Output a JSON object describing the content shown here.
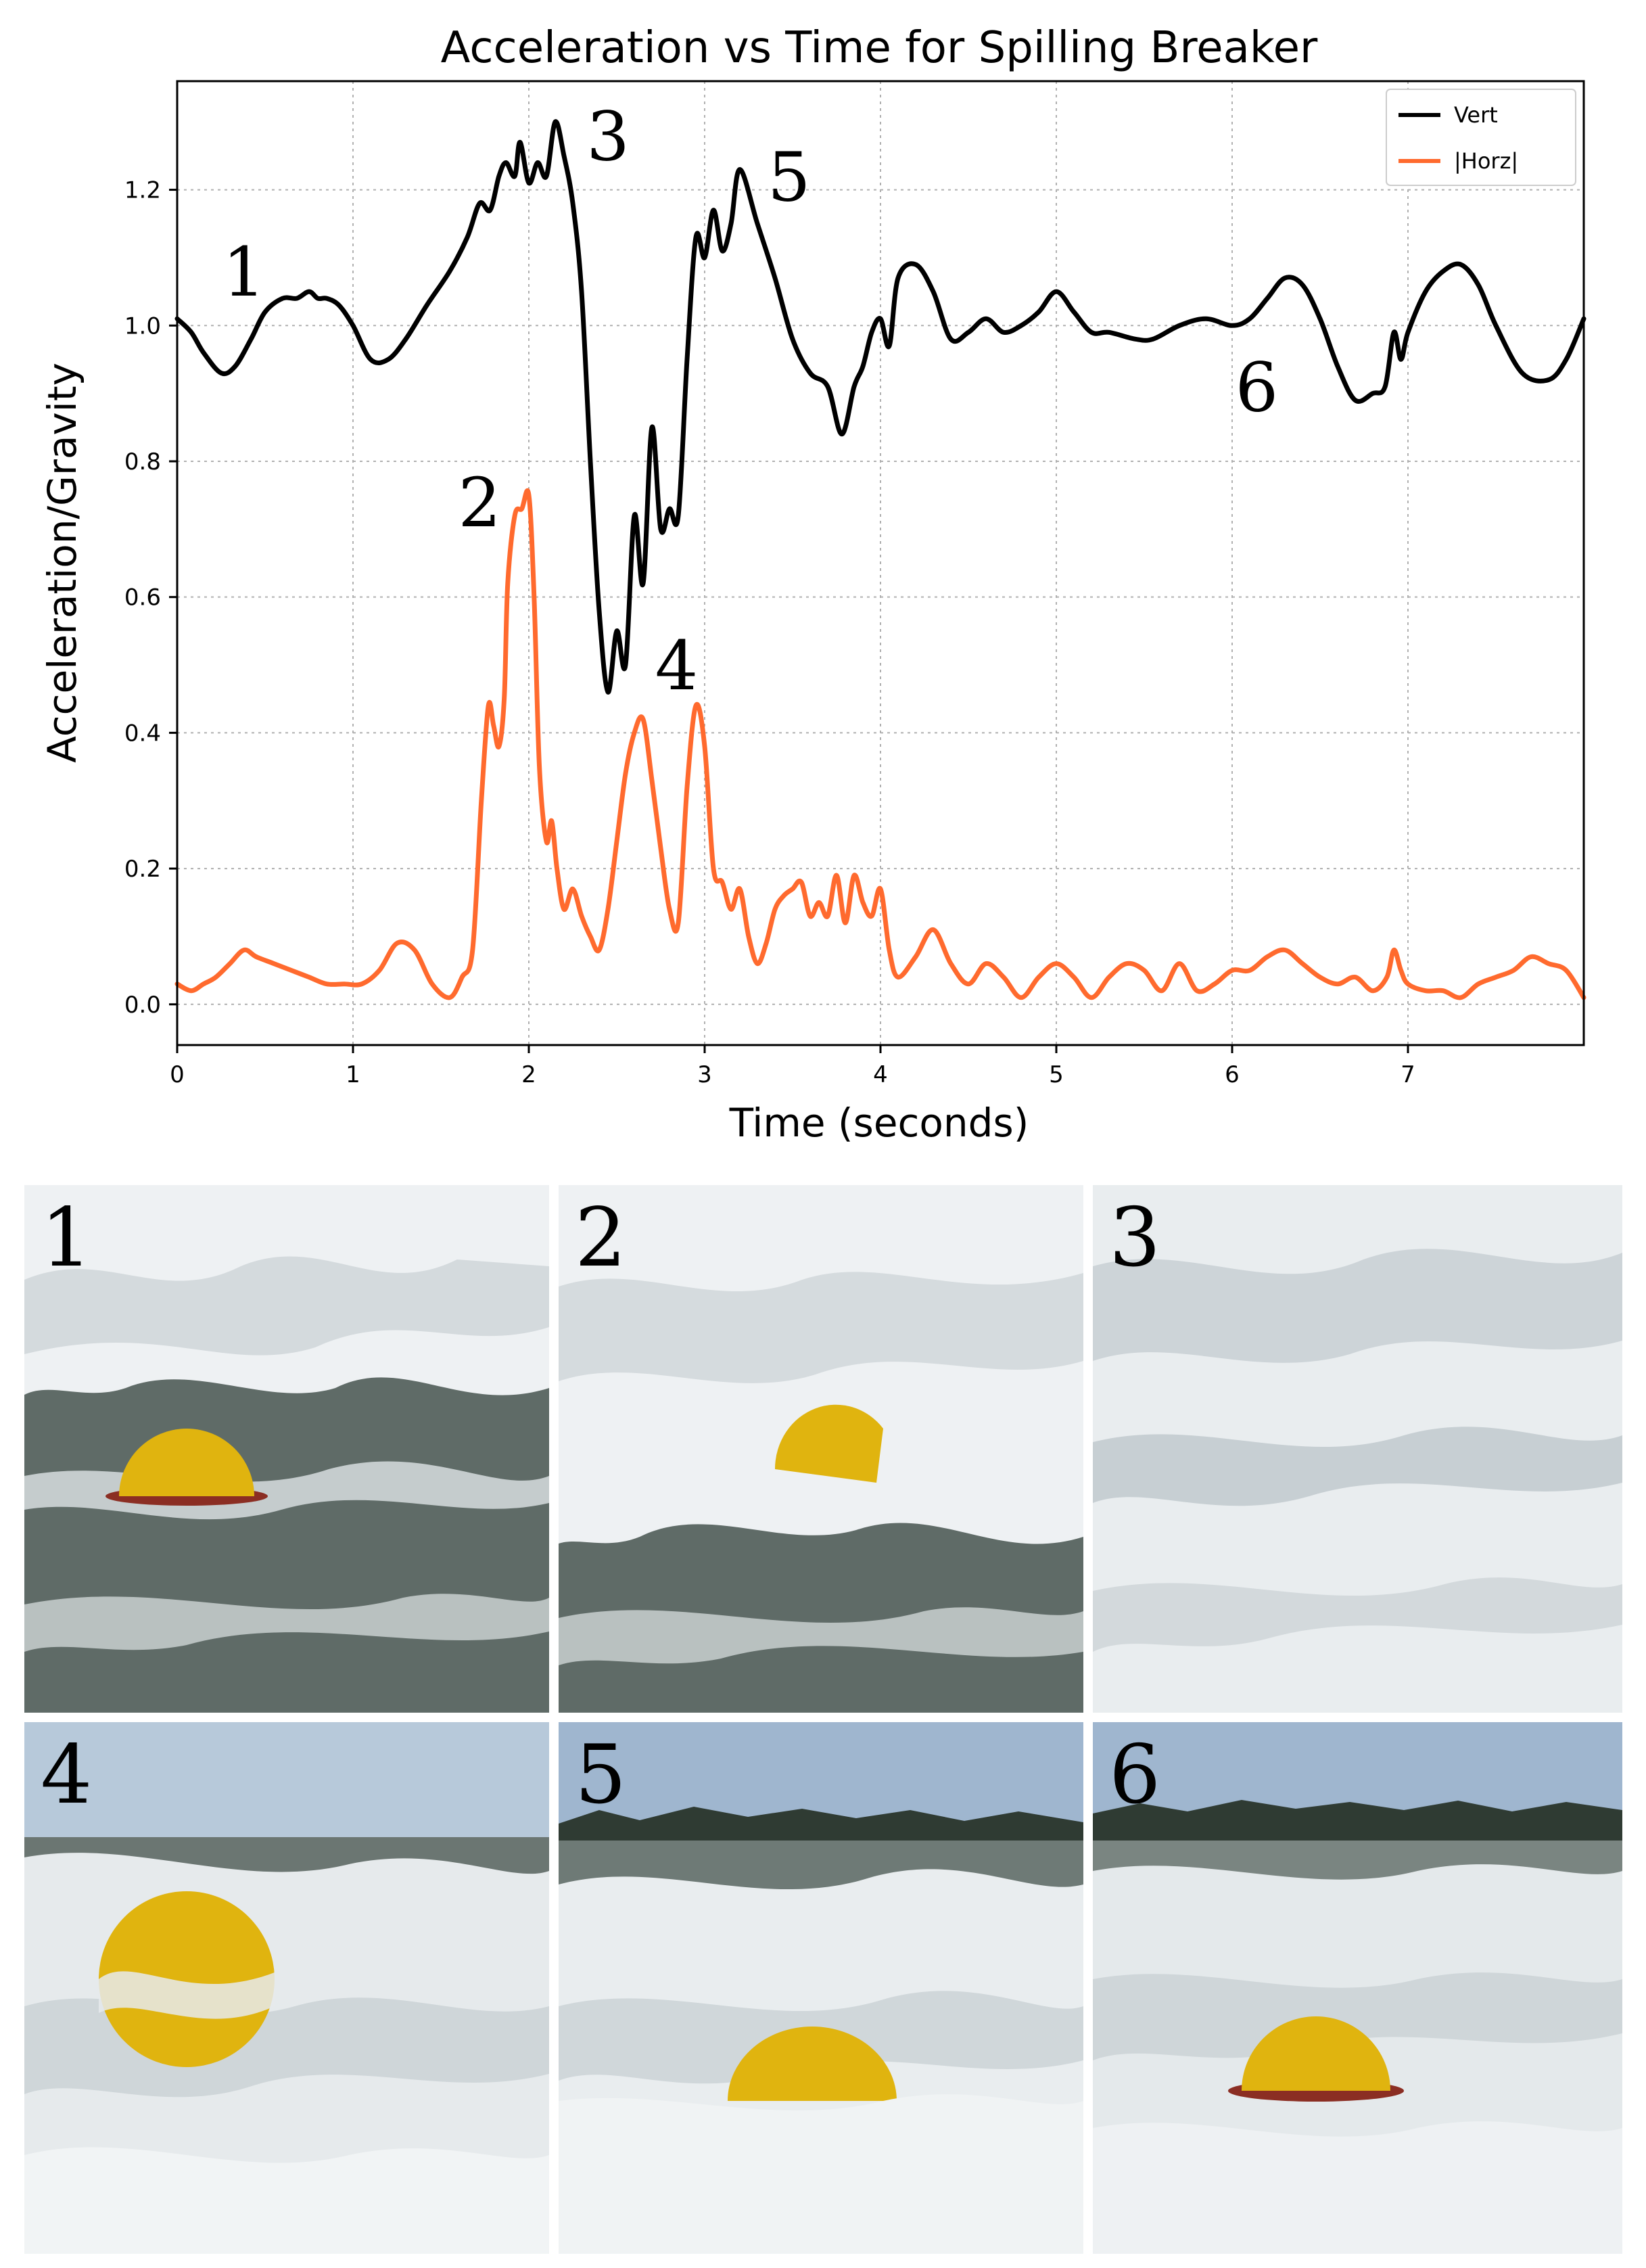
{
  "chart_data": {
    "type": "line",
    "title": "Acceleration vs Time for Spilling Breaker",
    "xlabel": "Time (seconds)",
    "ylabel": "Acceleration/Gravity",
    "xlim": [
      0,
      8
    ],
    "ylim": [
      -0.06,
      1.36
    ],
    "xticks": [
      0,
      1,
      2,
      3,
      4,
      5,
      6,
      7
    ],
    "xtick_labels": [
      "0",
      "1",
      "2",
      "3",
      "4",
      "5",
      "6",
      "7"
    ],
    "yticks": [
      0.0,
      0.2,
      0.4,
      0.6,
      0.8,
      1.0,
      1.2
    ],
    "ytick_labels": [
      "0.0",
      "0.2",
      "0.4",
      "0.6",
      "0.8",
      "1.0",
      "1.2"
    ],
    "grid": true,
    "legend": "top-right",
    "series": [
      {
        "name": "Vert",
        "color": "#000000",
        "x": [
          0,
          0.08,
          0.15,
          0.25,
          0.33,
          0.42,
          0.5,
          0.6,
          0.68,
          0.75,
          0.8,
          0.85,
          0.92,
          1.0,
          1.1,
          1.2,
          1.3,
          1.42,
          1.55,
          1.65,
          1.72,
          1.78,
          1.83,
          1.87,
          1.92,
          1.95,
          2.0,
          2.05,
          2.1,
          2.15,
          2.2,
          2.25,
          2.3,
          2.35,
          2.4,
          2.45,
          2.5,
          2.55,
          2.6,
          2.65,
          2.7,
          2.75,
          2.8,
          2.85,
          2.9,
          2.95,
          3.0,
          3.05,
          3.1,
          3.15,
          3.2,
          3.3,
          3.4,
          3.5,
          3.6,
          3.7,
          3.78,
          3.85,
          3.9,
          3.95,
          4.0,
          4.05,
          4.1,
          4.2,
          4.3,
          4.4,
          4.5,
          4.6,
          4.7,
          4.8,
          4.9,
          5.0,
          5.1,
          5.2,
          5.3,
          5.45,
          5.55,
          5.7,
          5.85,
          6.0,
          6.1,
          6.2,
          6.3,
          6.4,
          6.5,
          6.6,
          6.7,
          6.8,
          6.87,
          6.92,
          6.96,
          7.0,
          7.1,
          7.2,
          7.3,
          7.4,
          7.5,
          7.65,
          7.8,
          7.9,
          8.0
        ],
        "values": [
          1.01,
          0.99,
          0.96,
          0.93,
          0.94,
          0.98,
          1.02,
          1.04,
          1.04,
          1.05,
          1.04,
          1.04,
          1.03,
          1.0,
          0.95,
          0.95,
          0.98,
          1.03,
          1.08,
          1.13,
          1.18,
          1.17,
          1.22,
          1.24,
          1.22,
          1.27,
          1.21,
          1.24,
          1.22,
          1.3,
          1.25,
          1.18,
          1.05,
          0.8,
          0.58,
          0.46,
          0.55,
          0.5,
          0.72,
          0.62,
          0.85,
          0.7,
          0.73,
          0.72,
          0.95,
          1.13,
          1.1,
          1.17,
          1.11,
          1.15,
          1.23,
          1.15,
          1.07,
          0.98,
          0.93,
          0.91,
          0.84,
          0.91,
          0.94,
          0.99,
          1.01,
          0.97,
          1.07,
          1.09,
          1.05,
          0.98,
          0.99,
          1.01,
          0.99,
          1.0,
          1.02,
          1.05,
          1.02,
          0.99,
          0.99,
          0.98,
          0.98,
          1.0,
          1.01,
          1.0,
          1.01,
          1.04,
          1.07,
          1.06,
          1.01,
          0.94,
          0.89,
          0.9,
          0.91,
          0.99,
          0.95,
          0.99,
          1.05,
          1.08,
          1.09,
          1.06,
          1.0,
          0.93,
          0.92,
          0.95,
          1.01
        ]
      },
      {
        "name": "|Horz|",
        "color": "#ff6a2e",
        "x": [
          0,
          0.08,
          0.15,
          0.22,
          0.3,
          0.38,
          0.45,
          0.55,
          0.65,
          0.75,
          0.85,
          0.95,
          1.05,
          1.15,
          1.25,
          1.35,
          1.45,
          1.55,
          1.62,
          1.68,
          1.73,
          1.77,
          1.8,
          1.83,
          1.86,
          1.88,
          1.92,
          1.96,
          2.0,
          2.03,
          2.06,
          2.1,
          2.13,
          2.16,
          2.2,
          2.25,
          2.3,
          2.35,
          2.4,
          2.45,
          2.5,
          2.55,
          2.6,
          2.65,
          2.7,
          2.75,
          2.8,
          2.85,
          2.9,
          2.95,
          3.0,
          3.05,
          3.1,
          3.15,
          3.2,
          3.25,
          3.3,
          3.35,
          3.4,
          3.45,
          3.5,
          3.55,
          3.6,
          3.65,
          3.7,
          3.75,
          3.8,
          3.85,
          3.9,
          3.95,
          4.0,
          4.05,
          4.1,
          4.2,
          4.3,
          4.4,
          4.5,
          4.6,
          4.7,
          4.8,
          4.9,
          5.0,
          5.1,
          5.2,
          5.3,
          5.4,
          5.5,
          5.6,
          5.7,
          5.8,
          5.9,
          6.0,
          6.1,
          6.2,
          6.3,
          6.4,
          6.5,
          6.6,
          6.7,
          6.8,
          6.88,
          6.92,
          6.96,
          7.0,
          7.1,
          7.2,
          7.3,
          7.4,
          7.5,
          7.6,
          7.7,
          7.8,
          7.9,
          8.0
        ],
        "values": [
          0.03,
          0.02,
          0.03,
          0.04,
          0.06,
          0.08,
          0.07,
          0.06,
          0.05,
          0.04,
          0.03,
          0.03,
          0.03,
          0.05,
          0.09,
          0.08,
          0.03,
          0.01,
          0.04,
          0.08,
          0.3,
          0.44,
          0.41,
          0.38,
          0.45,
          0.62,
          0.72,
          0.73,
          0.75,
          0.6,
          0.35,
          0.24,
          0.27,
          0.2,
          0.14,
          0.17,
          0.13,
          0.1,
          0.08,
          0.14,
          0.24,
          0.34,
          0.4,
          0.42,
          0.33,
          0.23,
          0.14,
          0.12,
          0.32,
          0.44,
          0.38,
          0.2,
          0.18,
          0.14,
          0.17,
          0.1,
          0.06,
          0.09,
          0.14,
          0.16,
          0.17,
          0.18,
          0.13,
          0.15,
          0.13,
          0.19,
          0.12,
          0.19,
          0.15,
          0.13,
          0.17,
          0.08,
          0.04,
          0.07,
          0.11,
          0.06,
          0.03,
          0.06,
          0.04,
          0.01,
          0.04,
          0.06,
          0.04,
          0.01,
          0.04,
          0.06,
          0.05,
          0.02,
          0.06,
          0.02,
          0.03,
          0.05,
          0.05,
          0.07,
          0.08,
          0.06,
          0.04,
          0.03,
          0.04,
          0.02,
          0.04,
          0.08,
          0.05,
          0.03,
          0.02,
          0.02,
          0.01,
          0.03,
          0.04,
          0.05,
          0.07,
          0.06,
          0.05,
          0.01
        ]
      }
    ],
    "annotations": [
      {
        "text": "1",
        "x": 0.38,
        "y": 1.08
      },
      {
        "text": "2",
        "x": 1.72,
        "y": 0.74
      },
      {
        "text": "3",
        "x": 2.45,
        "y": 1.28
      },
      {
        "text": "4",
        "x": 2.84,
        "y": 0.5
      },
      {
        "text": "5",
        "x": 3.48,
        "y": 1.22
      },
      {
        "text": "6",
        "x": 6.14,
        "y": 0.91
      }
    ]
  },
  "photos": {
    "labels": [
      "1",
      "2",
      "3",
      "4",
      "5",
      "6"
    ],
    "colors": {
      "sky": "#a9bfd6",
      "water": "#6f7a76",
      "foam": "#eef1f3",
      "buoy": "#e0b40f",
      "trees": "#2f3b33"
    }
  }
}
